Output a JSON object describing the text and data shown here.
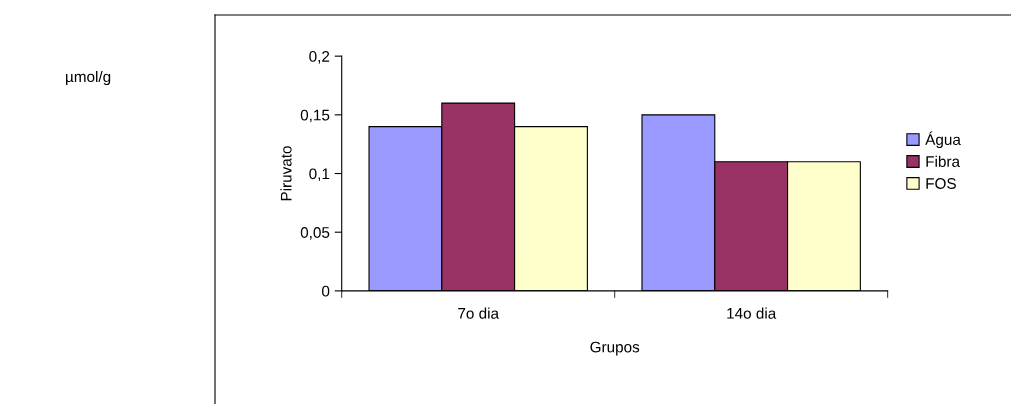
{
  "chart_data": {
    "type": "bar",
    "xlabel": "Grupos",
    "ylabel": "Piruvato",
    "categories": [
      "7o dia",
      "14o dia"
    ],
    "series": [
      {
        "name": "Água",
        "color": "#9999ff",
        "values": [
          0.14,
          0.15
        ]
      },
      {
        "name": "Fibra",
        "color": "#993366",
        "values": [
          0.16,
          0.11
        ]
      },
      {
        "name": "FOS",
        "color": "#ffffcc",
        "values": [
          0.14,
          0.11
        ]
      }
    ],
    "ylim": [
      0,
      0.2
    ],
    "yticks": [
      {
        "value": 0,
        "label": "0"
      },
      {
        "value": 0.05,
        "label": "0,05"
      },
      {
        "value": 0.1,
        "label": "0,1"
      },
      {
        "value": 0.15,
        "label": "0,15"
      },
      {
        "value": 0.2,
        "label": "0,2"
      }
    ],
    "grid": false,
    "legend": "right",
    "annotations": [
      "µmol/g"
    ]
  }
}
